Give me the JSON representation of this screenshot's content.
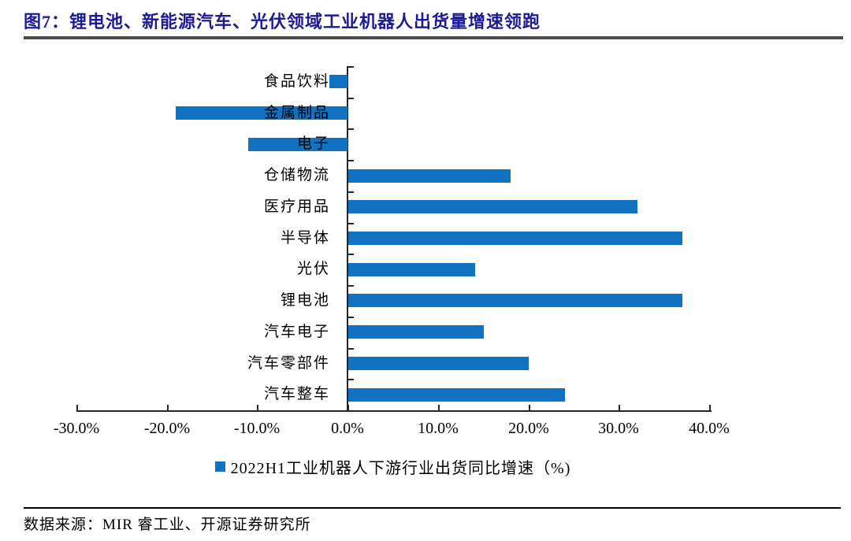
{
  "header": {
    "title": "图7：锂电池、新能源汽车、光伏领域工业机器人出货量增速领跑"
  },
  "chart_data": {
    "type": "bar",
    "orientation": "horizontal",
    "title": "图7：锂电池、新能源汽车、光伏领域工业机器人出货量增速领跑",
    "categories": [
      "食品饮料",
      "金属制品",
      "电子",
      "仓储物流",
      "医疗用品",
      "半导体",
      "光伏",
      "锂电池",
      "汽车电子",
      "汽车零部件",
      "汽车整车"
    ],
    "values": [
      -2,
      -19,
      -11,
      18,
      32,
      37,
      14,
      37,
      15,
      20,
      24
    ],
    "unit": "%",
    "series_name": "2022H1工业机器人下游行业出货同比增速（%)",
    "xlim": [
      -30,
      40
    ],
    "x_tick_step": 10,
    "x_tick_labels": [
      "-30.0%",
      "-20.0%",
      "-10.0%",
      "0.0%",
      "10.0%",
      "20.0%",
      "30.0%",
      "40.0%"
    ],
    "legend_position": "bottom",
    "grid": false,
    "bar_color": "#1272C2"
  },
  "colors": {
    "title_navy": "#1B1B96",
    "bar_blue": "#1272C2",
    "axis_dark": "#262626",
    "title_rule_gray": "#4D4D4D"
  },
  "footer": {
    "source": "数据来源：MIR 睿工业、开源证券研究所"
  }
}
